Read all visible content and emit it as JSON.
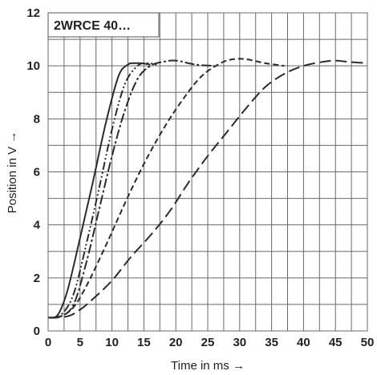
{
  "chart_data": {
    "type": "line",
    "title": "2WRCE 40…",
    "xlabel": "Time in ms →",
    "ylabel": "Position in V →",
    "xlim": [
      0,
      50
    ],
    "ylim": [
      0,
      12
    ],
    "xticks": [
      0,
      5,
      10,
      15,
      20,
      25,
      30,
      35,
      40,
      45,
      50
    ],
    "yticks": [
      0,
      2,
      4,
      6,
      8,
      10,
      12
    ],
    "grid": true,
    "legend": "none",
    "series": [
      {
        "dash": "solid",
        "x": [
          0,
          1.5,
          3,
          5,
          7,
          9,
          11,
          12.5,
          13.5,
          14.5,
          16
        ],
        "y": [
          0.5,
          0.6,
          1.5,
          3.5,
          5.6,
          7.8,
          9.6,
          10.05,
          10.1,
          10.1,
          10.05
        ]
      },
      {
        "dash": "dash-dot-dot",
        "x": [
          0,
          2,
          4,
          6,
          8,
          10,
          12,
          14,
          15.5,
          17
        ],
        "y": [
          0.5,
          0.6,
          1.4,
          3.3,
          5.4,
          7.6,
          9.3,
          10.0,
          10.1,
          10.05
        ]
      },
      {
        "dash": "dash-dot",
        "x": [
          0,
          2,
          4,
          6,
          8,
          10,
          12,
          14,
          16,
          18,
          20,
          23,
          26
        ],
        "y": [
          0.5,
          0.55,
          1.0,
          2.6,
          4.6,
          6.6,
          8.3,
          9.5,
          10.0,
          10.15,
          10.2,
          10.05,
          10.0
        ]
      },
      {
        "dash": "short-dash",
        "x": [
          0,
          2,
          4,
          6,
          9,
          12,
          15,
          18,
          21,
          24,
          27,
          29,
          31,
          34,
          37
        ],
        "y": [
          0.5,
          0.55,
          0.9,
          1.7,
          3.2,
          4.8,
          6.3,
          7.6,
          8.7,
          9.6,
          10.1,
          10.25,
          10.25,
          10.1,
          10.0
        ]
      },
      {
        "dash": "long-dash",
        "x": [
          0,
          3,
          5,
          7,
          10,
          13,
          16,
          19,
          22,
          25,
          28,
          31,
          34,
          37,
          40,
          43,
          45,
          47,
          50
        ],
        "y": [
          0.5,
          0.55,
          0.8,
          1.2,
          1.9,
          2.8,
          3.6,
          4.5,
          5.6,
          6.6,
          7.5,
          8.4,
          9.2,
          9.7,
          10.0,
          10.15,
          10.2,
          10.15,
          10.1
        ]
      }
    ]
  }
}
